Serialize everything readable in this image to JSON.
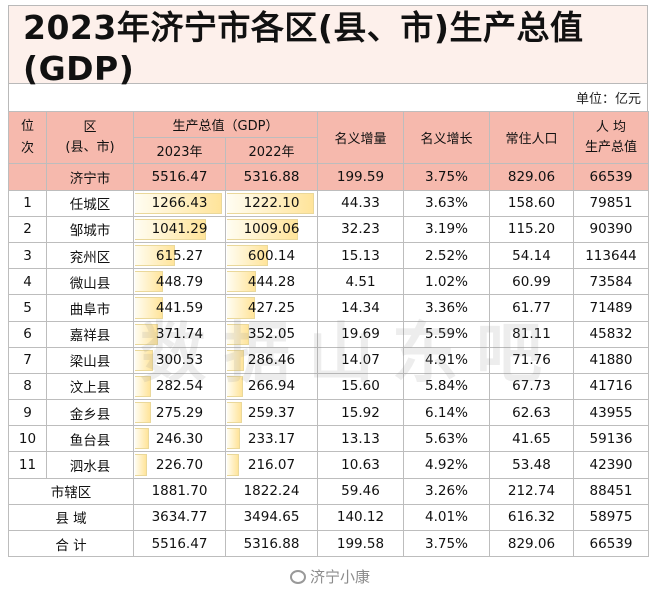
{
  "title": "2023年济宁市各区(县、市)生产总值(GDP)",
  "unit": "单位：亿元",
  "header": {
    "rank": "位次",
    "region_line1": "区",
    "region_line2": "(县、市)",
    "gdp_group": "生产总值（GDP）",
    "year_2023": "2023年",
    "year_2022": "2022年",
    "nominal_increase": "名义增量",
    "nominal_growth": "名义增长",
    "population": "常住人口",
    "per_capita_line1": "人 均",
    "per_capita_line2": "生产总值"
  },
  "total_row": {
    "rank": "",
    "name": "济宁市",
    "gdp_2023": "5516.47",
    "gdp_2022": "5316.88",
    "increase": "199.59",
    "growth": "3.75%",
    "population": "829.06",
    "per_capita": "66539"
  },
  "rows": [
    {
      "rank": "1",
      "name": "任城区",
      "gdp_2023": "1266.43",
      "gdp_2022": "1222.10",
      "increase": "44.33",
      "growth": "3.63%",
      "population": "158.60",
      "per_capita": "79851"
    },
    {
      "rank": "2",
      "name": "邹城市",
      "gdp_2023": "1041.29",
      "gdp_2022": "1009.06",
      "increase": "32.23",
      "growth": "3.19%",
      "population": "115.20",
      "per_capita": "90390"
    },
    {
      "rank": "3",
      "name": "兖州区",
      "gdp_2023": "615.27",
      "gdp_2022": "600.14",
      "increase": "15.13",
      "growth": "2.52%",
      "population": "54.14",
      "per_capita": "113644"
    },
    {
      "rank": "4",
      "name": "微山县",
      "gdp_2023": "448.79",
      "gdp_2022": "444.28",
      "increase": "4.51",
      "growth": "1.02%",
      "population": "60.99",
      "per_capita": "73584"
    },
    {
      "rank": "5",
      "name": "曲阜市",
      "gdp_2023": "441.59",
      "gdp_2022": "427.25",
      "increase": "14.34",
      "growth": "3.36%",
      "population": "61.77",
      "per_capita": "71489"
    },
    {
      "rank": "6",
      "name": "嘉祥县",
      "gdp_2023": "371.74",
      "gdp_2022": "352.05",
      "increase": "19.69",
      "growth": "5.59%",
      "population": "81.11",
      "per_capita": "45832"
    },
    {
      "rank": "7",
      "name": "梁山县",
      "gdp_2023": "300.53",
      "gdp_2022": "286.46",
      "increase": "14.07",
      "growth": "4.91%",
      "population": "71.76",
      "per_capita": "41880"
    },
    {
      "rank": "8",
      "name": "汶上县",
      "gdp_2023": "282.54",
      "gdp_2022": "266.94",
      "increase": "15.60",
      "growth": "5.84%",
      "population": "67.73",
      "per_capita": "41716"
    },
    {
      "rank": "9",
      "name": "金乡县",
      "gdp_2023": "275.29",
      "gdp_2022": "259.37",
      "increase": "15.92",
      "growth": "6.14%",
      "population": "62.63",
      "per_capita": "43955"
    },
    {
      "rank": "10",
      "name": "鱼台县",
      "gdp_2023": "246.30",
      "gdp_2022": "233.17",
      "increase": "13.13",
      "growth": "5.63%",
      "population": "41.65",
      "per_capita": "59136"
    },
    {
      "rank": "11",
      "name": "泗水县",
      "gdp_2023": "226.70",
      "gdp_2022": "216.07",
      "increase": "10.63",
      "growth": "4.92%",
      "population": "53.48",
      "per_capita": "42390"
    }
  ],
  "summary_rows": [
    {
      "name": "市辖区",
      "gdp_2023": "1881.70",
      "gdp_2022": "1822.24",
      "increase": "59.46",
      "growth": "3.26%",
      "population": "212.74",
      "per_capita": "88451"
    },
    {
      "name": "县 域",
      "gdp_2023": "3634.77",
      "gdp_2022": "3494.65",
      "increase": "140.12",
      "growth": "4.01%",
      "population": "616.32",
      "per_capita": "58975"
    },
    {
      "name": "合 计",
      "gdp_2023": "5516.47",
      "gdp_2022": "5316.88",
      "increase": "199.58",
      "growth": "3.75%",
      "population": "829.06",
      "per_capita": "66539"
    }
  ],
  "data_bar": {
    "scale_max_2023": 1266.43,
    "scale_max_2022": 1222.1,
    "colors": {
      "fill_start": "#fffdf2",
      "fill_end": "#ffe49a",
      "header_bg": "#f6b9ad",
      "title_bg": "#fdf0eb"
    }
  },
  "watermark": "数据山东吧",
  "weibo_credit": "济宁小康"
}
